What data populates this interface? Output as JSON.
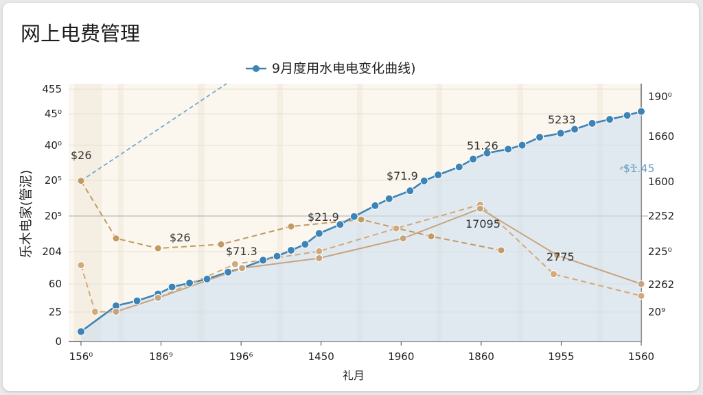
{
  "page": {
    "title": "网上电费管理"
  },
  "chart_data": {
    "type": "line",
    "title": "",
    "legend": {
      "label": "9月度用水电电变化曲线)",
      "placement": "top-center"
    },
    "xlabel": "礼月",
    "ylabel": "乐木电家(管泥)",
    "x_ticks": [
      "156⁰",
      "186⁹",
      "196⁶",
      "1450",
      "1960",
      "1860",
      "1955",
      "1560"
    ],
    "y_ticks_left": [
      "0",
      "25",
      "60",
      "204",
      "20⁵",
      "20⁵",
      "40⁰",
      "45⁰",
      "455"
    ],
    "y_ticks_right": [
      "20⁹",
      "2262",
      "225⁰",
      "2252",
      "1600",
      "1660",
      "190⁰"
    ],
    "grid": true,
    "series": [
      {
        "color": "#3d84b6",
        "style": "solid-area",
        "points": [
          [
            0,
            10
          ],
          [
            0.5,
            36
          ],
          [
            0.8,
            41
          ],
          [
            1.1,
            48
          ],
          [
            1.3,
            55
          ],
          [
            1.55,
            59
          ],
          [
            1.8,
            63
          ],
          [
            2.1,
            70
          ],
          [
            2.3,
            74
          ],
          [
            2.6,
            82
          ],
          [
            2.8,
            86
          ],
          [
            3.0,
            92
          ],
          [
            3.2,
            98
          ],
          [
            3.4,
            109
          ],
          [
            3.7,
            118
          ],
          [
            3.9,
            126
          ],
          [
            4.2,
            137
          ],
          [
            4.4,
            144
          ],
          [
            4.7,
            152
          ],
          [
            4.9,
            162
          ],
          [
            5.1,
            168
          ],
          [
            5.4,
            176
          ],
          [
            5.6,
            184
          ],
          [
            5.8,
            190
          ],
          [
            6.1,
            194
          ],
          [
            6.3,
            198
          ],
          [
            6.55,
            206
          ],
          [
            6.85,
            210
          ],
          [
            7.05,
            214
          ],
          [
            7.3,
            220
          ],
          [
            7.55,
            224
          ],
          [
            7.8,
            228
          ],
          [
            8.0,
            232
          ]
        ]
      },
      {
        "color": "#c39a60",
        "style": "dashed",
        "points": [
          [
            0,
            162
          ],
          [
            0.5,
            104
          ],
          [
            1.1,
            94
          ],
          [
            2.0,
            98
          ],
          [
            3.0,
            116
          ],
          [
            4.0,
            123
          ],
          [
            5.0,
            106
          ],
          [
            6.0,
            92
          ]
        ]
      },
      {
        "color": "#d2a97a",
        "style": "dashed",
        "points": [
          [
            0,
            77
          ],
          [
            0.2,
            30
          ],
          [
            0.5,
            30
          ],
          [
            1.1,
            44
          ],
          [
            2.2,
            78
          ],
          [
            3.4,
            91
          ],
          [
            4.5,
            114
          ],
          [
            5.7,
            138
          ],
          [
            6.75,
            68
          ],
          [
            8.0,
            46
          ]
        ]
      },
      {
        "color": "#c6a47f",
        "style": "solid",
        "points": [
          [
            0.5,
            30
          ],
          [
            1.1,
            44
          ],
          [
            2.3,
            74
          ],
          [
            3.4,
            84
          ],
          [
            4.6,
            104
          ],
          [
            5.7,
            134
          ],
          [
            6.8,
            87
          ],
          [
            8.0,
            58
          ]
        ]
      }
    ],
    "annotations": [
      "$26",
      "$26",
      "$71.3",
      "$21.9",
      "$71.9",
      "51.26",
      "5233",
      "17095",
      "2775",
      "-$1.45"
    ]
  }
}
